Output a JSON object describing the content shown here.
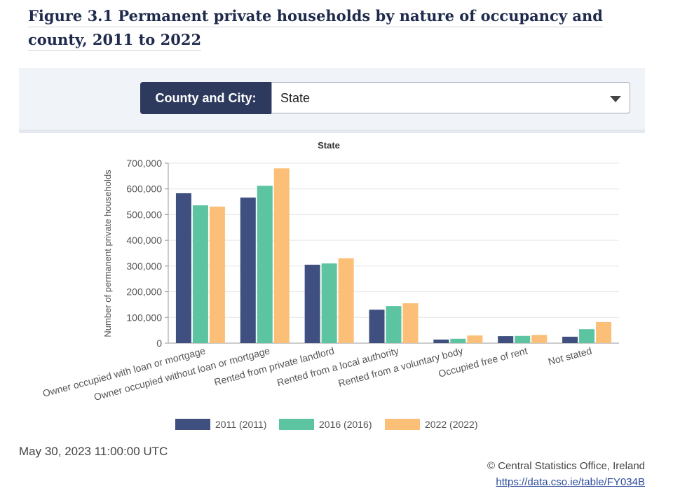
{
  "header": {
    "title": "Figure 3.1 Permanent private households by nature of occupancy and county, 2011 to 2022"
  },
  "selector": {
    "label": "County and City:",
    "value": "State"
  },
  "chart_data": {
    "type": "bar",
    "title": "State",
    "y_label": "Number of permanent private households",
    "categories": [
      "Owner occupied with loan or mortgage",
      "Owner occupied without loan or mortgage",
      "Rented from private landlord",
      "Rented from a local authority",
      "Rented from a voluntary body",
      "Occupied free of rent",
      "Not stated"
    ],
    "series": [
      {
        "name": "2011 (2011)",
        "color": "#3e4f80",
        "values": [
          583000,
          566000,
          305000,
          130000,
          14000,
          27000,
          25000
        ]
      },
      {
        "name": "2016 (2016)",
        "color": "#5cc4a0",
        "values": [
          536000,
          612000,
          310000,
          144000,
          17000,
          28000,
          54000
        ]
      },
      {
        "name": "2022 (2022)",
        "color": "#fbbf77",
        "values": [
          531000,
          680000,
          330000,
          155000,
          30000,
          32000,
          82000
        ]
      }
    ],
    "ylim": [
      0,
      700000
    ],
    "yticks": [
      0,
      {
        "value": 100000,
        "label": "100,000"
      },
      {
        "value": 200000,
        "label": "200,000"
      },
      {
        "value": 300000,
        "label": "300,000"
      },
      {
        "value": 400000,
        "label": "400,000"
      },
      {
        "value": 500000,
        "label": "500,000"
      },
      {
        "value": 600000,
        "label": "600,000"
      },
      {
        "value": 700000,
        "label": "700,000"
      }
    ],
    "grid": true
  },
  "footer": {
    "date": "May 30, 2023 11:00:00 UTC",
    "copyright": "© Central Statistics Office, Ireland",
    "link": "https://data.cso.ie/table/FY034B"
  }
}
